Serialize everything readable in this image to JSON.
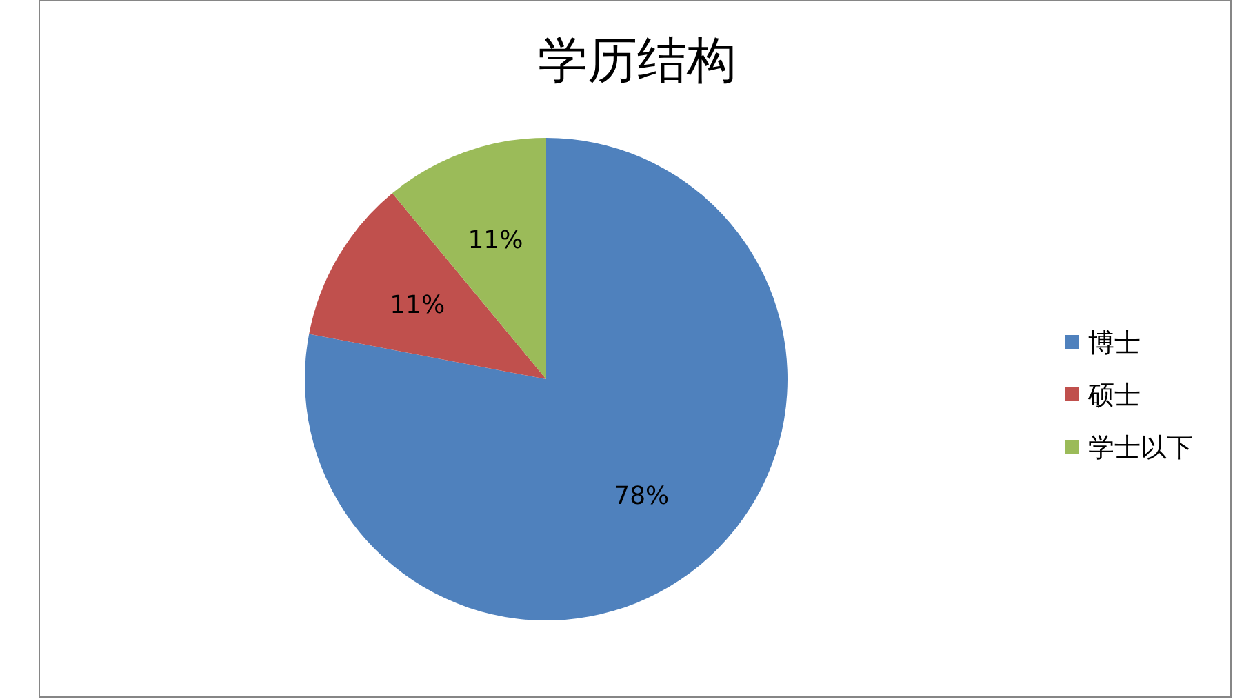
{
  "chart_data": {
    "type": "pie",
    "title": "学历结构",
    "categories": [
      "博士",
      "硕士",
      "学士以下"
    ],
    "values": [
      78,
      11,
      11
    ],
    "value_labels": [
      "78%",
      "11%",
      "11%"
    ],
    "colors": [
      "#4f81bd",
      "#c0504d",
      "#9bbb59"
    ],
    "legend": "right"
  }
}
